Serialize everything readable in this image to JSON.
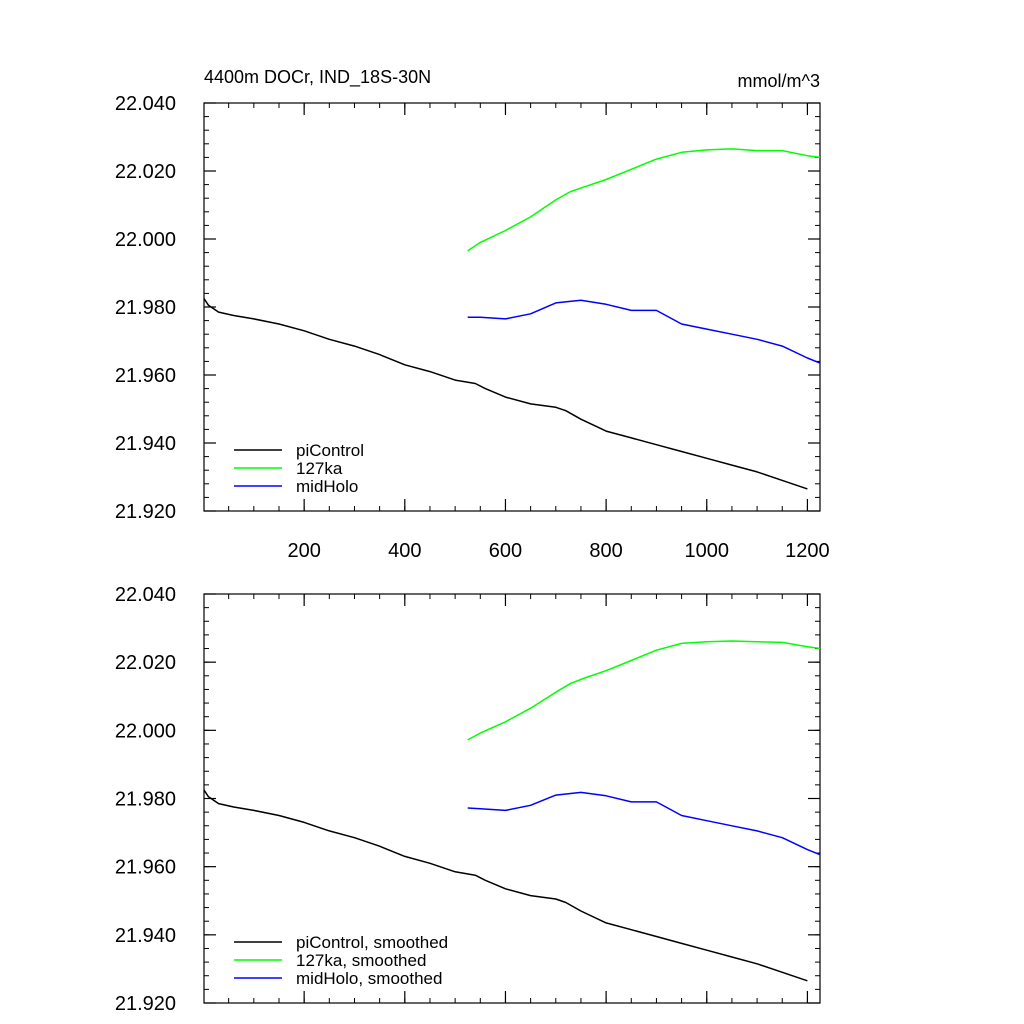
{
  "chart_data": [
    {
      "type": "line",
      "title": "4400m DOCr, IND_18S-30N",
      "units": "mmol/m^3",
      "xlim": [
        1,
        1225
      ],
      "ylim": [
        21.92,
        22.04
      ],
      "xticks": [
        200,
        400,
        600,
        800,
        1000,
        1200
      ],
      "xtick_labels": [
        "200",
        "400",
        "600",
        "800",
        "1000",
        "1200"
      ],
      "yticks": [
        21.92,
        21.94,
        21.96,
        21.98,
        22.0,
        22.02,
        22.04
      ],
      "ytick_labels": [
        "21.920",
        "21.940",
        "21.960",
        "21.980",
        "22.000",
        "22.020",
        "22.040"
      ],
      "legend_position": "bottom-left",
      "series": [
        {
          "name": "piControl",
          "color": "#000000",
          "x": [
            1,
            10,
            30,
            60,
            100,
            150,
            200,
            250,
            300,
            350,
            400,
            450,
            500,
            540,
            560,
            600,
            650,
            700,
            720,
            750,
            800,
            850,
            900,
            950,
            1000,
            1050,
            1100,
            1150,
            1200
          ],
          "y": [
            21.9825,
            21.9805,
            21.9785,
            21.9775,
            21.9765,
            21.975,
            21.973,
            21.9705,
            21.9685,
            21.966,
            21.963,
            21.961,
            21.9585,
            21.9575,
            21.956,
            21.9535,
            21.9515,
            21.9505,
            21.9495,
            21.947,
            21.9435,
            21.9415,
            21.9395,
            21.9375,
            21.9355,
            21.9335,
            21.9315,
            21.929,
            21.9265
          ]
        },
        {
          "name": "127ka",
          "color": "#00ff00",
          "x": [
            525,
            550,
            600,
            650,
            700,
            730,
            760,
            800,
            850,
            900,
            950,
            1000,
            1050,
            1100,
            1150,
            1200,
            1225
          ],
          "y": [
            21.9965,
            21.999,
            22.0025,
            22.0065,
            22.0115,
            22.014,
            22.0155,
            22.0175,
            22.0205,
            22.0235,
            22.0255,
            22.0262,
            22.0265,
            22.026,
            22.026,
            22.0245,
            22.024
          ]
        },
        {
          "name": "midHolo",
          "color": "#0000ff",
          "x": [
            525,
            550,
            600,
            650,
            700,
            750,
            800,
            850,
            900,
            950,
            1000,
            1050,
            1100,
            1150,
            1200,
            1225
          ],
          "y": [
            21.977,
            21.977,
            21.9765,
            21.978,
            21.9812,
            21.982,
            21.9808,
            21.979,
            21.979,
            21.975,
            21.9735,
            21.972,
            21.9705,
            21.9685,
            21.965,
            21.9635
          ]
        }
      ]
    },
    {
      "type": "line",
      "xlim": [
        1,
        1225
      ],
      "ylim": [
        21.92,
        22.04
      ],
      "xticks": [
        200,
        400,
        600,
        800,
        1000,
        1200
      ],
      "yticks": [
        21.92,
        21.94,
        21.96,
        21.98,
        22.0,
        22.02,
        22.04
      ],
      "ytick_labels": [
        "21.920",
        "21.940",
        "21.960",
        "21.980",
        "22.000",
        "22.020",
        "22.040"
      ],
      "legend_position": "bottom-left",
      "series": [
        {
          "name": "piControl, smoothed",
          "color": "#000000",
          "x": [
            1,
            10,
            30,
            60,
            100,
            150,
            200,
            250,
            300,
            350,
            400,
            450,
            500,
            540,
            560,
            600,
            650,
            700,
            720,
            750,
            800,
            850,
            900,
            950,
            1000,
            1050,
            1100,
            1150,
            1200
          ],
          "y": [
            21.9825,
            21.9805,
            21.9785,
            21.9775,
            21.9765,
            21.975,
            21.973,
            21.9705,
            21.9685,
            21.966,
            21.963,
            21.961,
            21.9585,
            21.9575,
            21.956,
            21.9535,
            21.9515,
            21.9505,
            21.9495,
            21.947,
            21.9435,
            21.9415,
            21.9395,
            21.9375,
            21.9355,
            21.9335,
            21.9315,
            21.929,
            21.9265
          ]
        },
        {
          "name": "127ka, smoothed",
          "color": "#00ff00",
          "x": [
            525,
            550,
            600,
            650,
            700,
            730,
            760,
            800,
            850,
            900,
            950,
            1000,
            1050,
            1100,
            1150,
            1200,
            1225
          ],
          "y": [
            21.9972,
            21.9992,
            22.0025,
            22.0065,
            22.0112,
            22.0138,
            22.0155,
            22.0175,
            22.0205,
            22.0235,
            22.0255,
            22.026,
            22.0262,
            22.026,
            22.0258,
            22.0245,
            22.024
          ]
        },
        {
          "name": "midHolo, smoothed",
          "color": "#0000ff",
          "x": [
            525,
            550,
            600,
            650,
            700,
            750,
            800,
            850,
            900,
            950,
            1000,
            1050,
            1100,
            1150,
            1200,
            1225
          ],
          "y": [
            21.9772,
            21.977,
            21.9765,
            21.978,
            21.981,
            21.9818,
            21.9808,
            21.979,
            21.979,
            21.975,
            21.9735,
            21.972,
            21.9705,
            21.9685,
            21.965,
            21.9635
          ]
        }
      ]
    }
  ]
}
